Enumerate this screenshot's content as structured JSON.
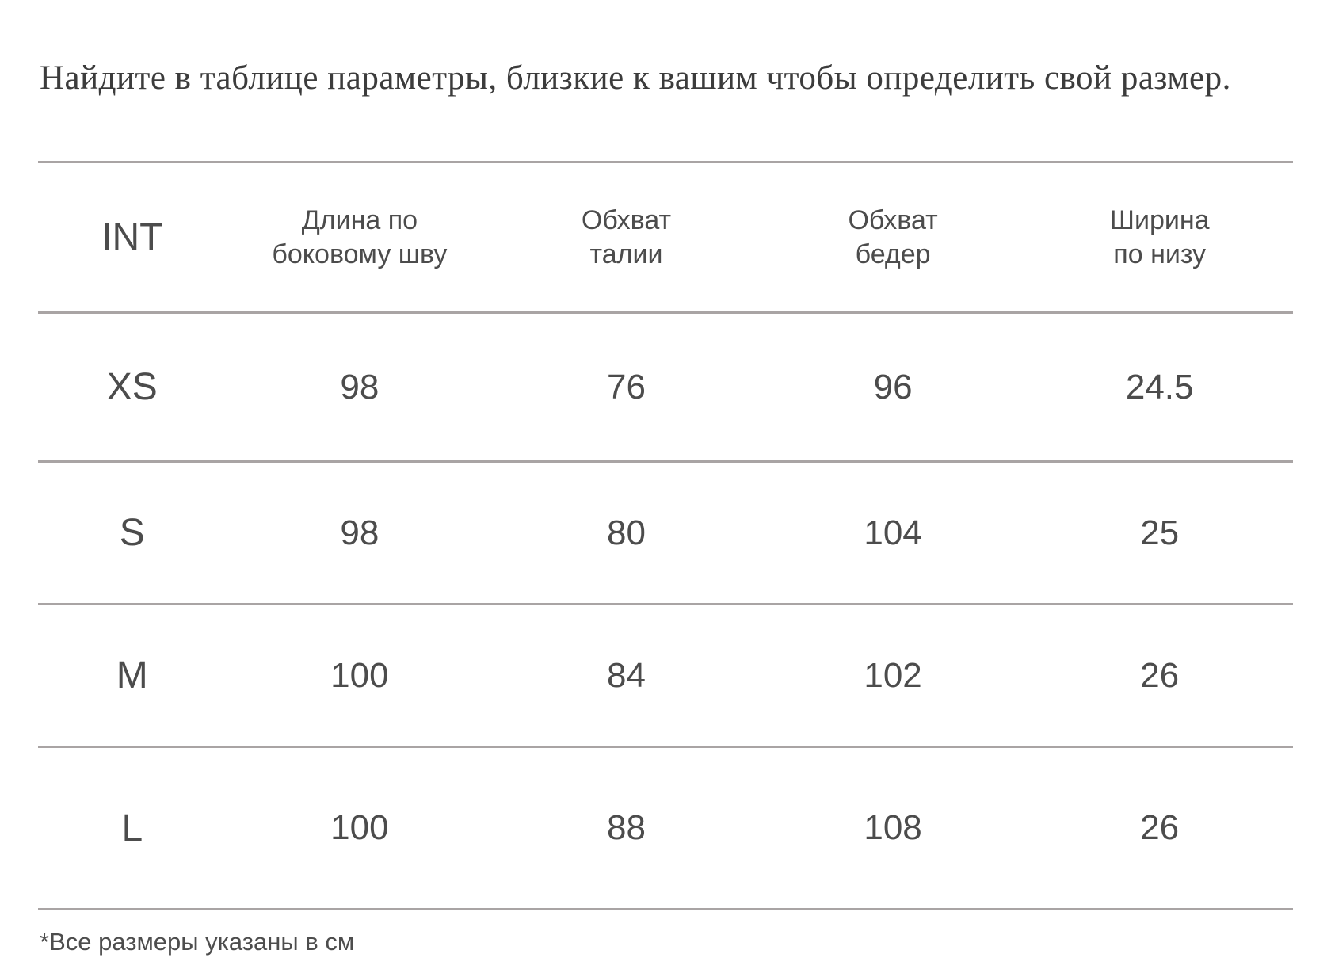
{
  "page": {
    "title": "Найдите в таблице параметры, близкие к вашим чтобы определить свой размер.",
    "footnote": "*Все размеры указаны в см"
  },
  "size_table": {
    "columns": [
      "INT",
      "Длина по\nбоковому шву",
      "Обхват\nталии",
      "Обхват\nбедер",
      "Ширина\nпо низу"
    ],
    "rows": [
      {
        "size": "XS",
        "values": [
          "98",
          "76",
          "96",
          "24.5"
        ]
      },
      {
        "size": "S",
        "values": [
          "98",
          "80",
          "104",
          "25"
        ]
      },
      {
        "size": "M",
        "values": [
          "100",
          "84",
          "102",
          "26"
        ]
      },
      {
        "size": "L",
        "values": [
          "100",
          "88",
          "108",
          "26"
        ]
      }
    ],
    "units_note": "см",
    "colors": {
      "title_text": "#3c3c3c",
      "table_text": "#4c4c4c",
      "divider_line": "#a9a4a4",
      "background": "#ffffff"
    }
  }
}
